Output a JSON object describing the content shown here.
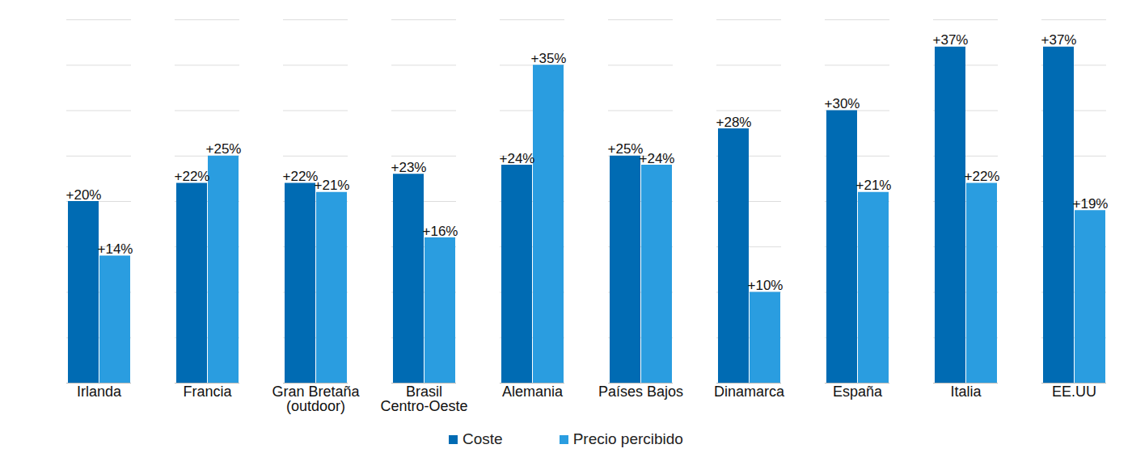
{
  "chart_data": {
    "type": "bar",
    "categories": [
      "Irlanda",
      "Francia",
      "Gran Bretaña\n(outdoor)",
      "Brasil\nCentro-Oeste",
      "Alemania",
      "Países Bajos",
      "Dinamarca",
      "España",
      "Italia",
      "EE.UU"
    ],
    "series": [
      {
        "name": "Coste",
        "color": "#006bb3",
        "values": [
          20,
          22,
          22,
          23,
          24,
          25,
          28,
          30,
          37,
          37
        ],
        "value_labels": [
          "+20%",
          "+22%",
          "+22%",
          "+23%",
          "+24%",
          "+25%",
          "+28%",
          "+30%",
          "+37%",
          "+37%"
        ]
      },
      {
        "name": "Precio percibido",
        "color": "#2a9de0",
        "values": [
          14,
          25,
          21,
          16,
          35,
          24,
          10,
          21,
          22,
          19
        ],
        "value_labels": [
          "+14%",
          "+25%",
          "+21%",
          "+16%",
          "+35%",
          "+24%",
          "+10%",
          "+21%",
          "+22%",
          "+19%"
        ]
      }
    ],
    "ylim": [
      0,
      40
    ],
    "yticks": [
      0,
      5,
      10,
      15,
      20,
      25,
      30,
      35,
      40
    ],
    "grid": true,
    "data_labels": true,
    "tick_labels": "x",
    "legend": "bottom"
  }
}
